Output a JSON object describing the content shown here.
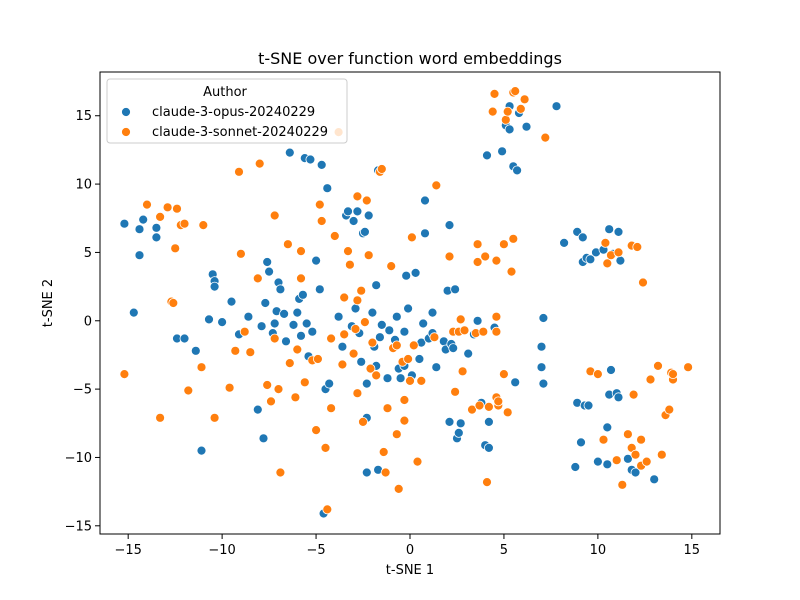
{
  "chart_data": {
    "type": "scatter",
    "title": "t-SNE over function word embeddings",
    "xlabel": "t-SNE 1",
    "ylabel": "t-SNE 2",
    "xlim": [
      -16.5,
      16.5
    ],
    "ylim": [
      -15.6,
      18.2
    ],
    "xticks": [
      -15,
      -10,
      -5,
      0,
      5,
      10,
      15
    ],
    "yticks": [
      -15,
      -10,
      -5,
      0,
      5,
      10,
      15
    ],
    "grid": false,
    "legend": {
      "title": "Author",
      "placement": "top-left"
    },
    "series": [
      {
        "name": "claude-3-opus-20240229",
        "color": "#1f77b4",
        "points": [
          [
            -15.2,
            7.1
          ],
          [
            -14.7,
            0.6
          ],
          [
            -14.4,
            4.8
          ],
          [
            -14.4,
            6.7
          ],
          [
            -14.2,
            7.4
          ],
          [
            -13.5,
            6.1
          ],
          [
            -13.5,
            6.8
          ],
          [
            -12.4,
            -1.3
          ],
          [
            -12.0,
            -1.3
          ],
          [
            -11.4,
            -2.2
          ],
          [
            -11.1,
            -9.5
          ],
          [
            -10.7,
            0.1
          ],
          [
            -10.5,
            3.4
          ],
          [
            -10.4,
            2.9
          ],
          [
            -10.4,
            2.5
          ],
          [
            -10.0,
            -0.1
          ],
          [
            -9.5,
            1.4
          ],
          [
            -9.1,
            -1.0
          ],
          [
            -8.6,
            0.3
          ],
          [
            -8.1,
            -6.5
          ],
          [
            -7.9,
            -0.4
          ],
          [
            -7.8,
            -8.6
          ],
          [
            -7.7,
            1.3
          ],
          [
            -7.6,
            4.3
          ],
          [
            -7.5,
            3.6
          ],
          [
            -7.3,
            -0.9
          ],
          [
            -7.2,
            -0.2
          ],
          [
            -7.1,
            0.7
          ],
          [
            -7.0,
            2.8
          ],
          [
            -6.9,
            2.3
          ],
          [
            -6.7,
            0.5
          ],
          [
            -6.6,
            -1.5
          ],
          [
            -6.4,
            12.3
          ],
          [
            -6.2,
            -0.3
          ],
          [
            -6.0,
            0.6
          ],
          [
            -5.9,
            1.6
          ],
          [
            -5.8,
            -1.1
          ],
          [
            -5.7,
            1.9
          ],
          [
            -5.6,
            11.9
          ],
          [
            -5.5,
            -0.2
          ],
          [
            -5.4,
            -2.6
          ],
          [
            -5.3,
            11.8
          ],
          [
            -5.2,
            -0.8
          ],
          [
            -5.0,
            4.4
          ],
          [
            -4.8,
            2.3
          ],
          [
            -4.7,
            11.4
          ],
          [
            -4.6,
            -14.1
          ],
          [
            -4.5,
            -5.0
          ],
          [
            -4.4,
            9.7
          ],
          [
            -4.3,
            -4.6
          ],
          [
            -3.8,
            0.3
          ],
          [
            -3.6,
            -1.9
          ],
          [
            -3.4,
            7.7
          ],
          [
            -3.3,
            8.0
          ],
          [
            -3.1,
            -0.4
          ],
          [
            -3.0,
            7.3
          ],
          [
            -2.9,
            0.9
          ],
          [
            -2.8,
            8.0
          ],
          [
            -2.7,
            -0.9
          ],
          [
            -2.6,
            -3.0
          ],
          [
            -2.5,
            6.4
          ],
          [
            -2.4,
            6.5
          ],
          [
            -2.3,
            -11.1
          ],
          [
            -2.3,
            -7.1
          ],
          [
            -2.3,
            -4.6
          ],
          [
            -2.2,
            7.7
          ],
          [
            -2.0,
            0.6
          ],
          [
            -1.9,
            -1.9
          ],
          [
            -1.8,
            -3.3
          ],
          [
            -1.8,
            2.6
          ],
          [
            -1.7,
            11.0
          ],
          [
            -1.7,
            -10.9
          ],
          [
            -1.6,
            -1.2
          ],
          [
            -1.5,
            -0.3
          ],
          [
            -1.2,
            -4.2
          ],
          [
            -1.1,
            -0.7
          ],
          [
            -0.8,
            -1.4
          ],
          [
            -0.7,
            0.3
          ],
          [
            -0.6,
            -3.5
          ],
          [
            -0.5,
            -4.2
          ],
          [
            -0.3,
            -3.3
          ],
          [
            -0.3,
            -0.8
          ],
          [
            -0.2,
            3.3
          ],
          [
            -0.1,
            0.9
          ],
          [
            0.1,
            -4.0
          ],
          [
            0.3,
            3.5
          ],
          [
            0.5,
            -2.8
          ],
          [
            0.6,
            -1.6
          ],
          [
            0.7,
            -0.2
          ],
          [
            0.8,
            8.8
          ],
          [
            0.8,
            6.4
          ],
          [
            1.0,
            -1.3
          ],
          [
            1.2,
            -0.9
          ],
          [
            1.2,
            0.6
          ],
          [
            1.4,
            -3.4
          ],
          [
            1.8,
            -1.5
          ],
          [
            1.9,
            -2.1
          ],
          [
            2.0,
            2.2
          ],
          [
            2.1,
            7.0
          ],
          [
            2.1,
            -7.4
          ],
          [
            2.2,
            -1.7
          ],
          [
            2.3,
            -2.0
          ],
          [
            2.4,
            2.3
          ],
          [
            2.5,
            -8.6
          ],
          [
            2.6,
            -8.2
          ],
          [
            2.7,
            -7.5
          ],
          [
            3.1,
            -2.4
          ],
          [
            3.4,
            -1.0
          ],
          [
            3.6,
            0.0
          ],
          [
            3.8,
            -6.0
          ],
          [
            4.0,
            -9.1
          ],
          [
            4.2,
            -7.4
          ],
          [
            4.2,
            -9.3
          ],
          [
            4.5,
            -0.5
          ],
          [
            4.1,
            12.1
          ],
          [
            4.9,
            12.4
          ],
          [
            5.1,
            14.3
          ],
          [
            5.3,
            14.0
          ],
          [
            5.3,
            15.7
          ],
          [
            5.5,
            11.3
          ],
          [
            5.6,
            -4.5
          ],
          [
            5.7,
            11.0
          ],
          [
            5.8,
            15.2
          ],
          [
            6.2,
            14.2
          ],
          [
            7.0,
            -1.9
          ],
          [
            7.0,
            -3.4
          ],
          [
            7.1,
            -4.6
          ],
          [
            7.1,
            0.2
          ],
          [
            7.8,
            15.7
          ],
          [
            8.2,
            5.7
          ],
          [
            8.8,
            -10.7
          ],
          [
            8.9,
            -6.0
          ],
          [
            8.9,
            6.5
          ],
          [
            9.1,
            -8.9
          ],
          [
            9.2,
            6.1
          ],
          [
            9.2,
            4.3
          ],
          [
            9.3,
            -6.2
          ],
          [
            9.4,
            4.6
          ],
          [
            9.5,
            -6.2
          ],
          [
            9.6,
            4.5
          ],
          [
            9.9,
            5.0
          ],
          [
            10.0,
            -10.3
          ],
          [
            10.3,
            5.2
          ],
          [
            10.3,
            -8.7
          ],
          [
            10.5,
            -7.8
          ],
          [
            10.5,
            -10.5
          ],
          [
            10.6,
            6.7
          ],
          [
            10.6,
            -5.4
          ],
          [
            10.7,
            -3.6
          ],
          [
            10.8,
            4.9
          ],
          [
            11.0,
            -5.3
          ],
          [
            11.1,
            -5.6
          ],
          [
            11.1,
            6.5
          ],
          [
            11.2,
            4.4
          ],
          [
            11.6,
            -10.1
          ],
          [
            11.8,
            -10.9
          ],
          [
            12.0,
            -11.1
          ],
          [
            13.0,
            -11.6
          ]
        ]
      },
      {
        "name": "claude-3-sonnet-20240229",
        "color": "#ff7f0e",
        "points": [
          [
            -15.2,
            -3.9
          ],
          [
            -14.0,
            8.5
          ],
          [
            -13.3,
            7.6
          ],
          [
            -13.3,
            -7.1
          ],
          [
            -12.9,
            8.3
          ],
          [
            -12.7,
            1.4
          ],
          [
            -12.6,
            1.3
          ],
          [
            -12.5,
            5.3
          ],
          [
            -12.4,
            8.2
          ],
          [
            -12.2,
            7.0
          ],
          [
            -12.0,
            7.1
          ],
          [
            -11.8,
            -5.1
          ],
          [
            -11.1,
            -3.4
          ],
          [
            -11.0,
            7.0
          ],
          [
            -10.4,
            -7.1
          ],
          [
            -9.6,
            -4.9
          ],
          [
            -9.3,
            -2.2
          ],
          [
            -9.1,
            10.9
          ],
          [
            -9.0,
            4.9
          ],
          [
            -8.8,
            -0.8
          ],
          [
            -8.5,
            -2.3
          ],
          [
            -8.1,
            3.1
          ],
          [
            -8.0,
            11.5
          ],
          [
            -7.6,
            -4.7
          ],
          [
            -7.4,
            -5.9
          ],
          [
            -7.2,
            -1.3
          ],
          [
            -7.2,
            7.7
          ],
          [
            -7.0,
            -5.0
          ],
          [
            -6.9,
            -11.1
          ],
          [
            -6.5,
            5.6
          ],
          [
            -6.4,
            -3.1
          ],
          [
            -6.1,
            -5.6
          ],
          [
            -6.0,
            -2.1
          ],
          [
            -5.8,
            5.1
          ],
          [
            -5.8,
            3.1
          ],
          [
            -5.6,
            -4.5
          ],
          [
            -5.2,
            -2.9
          ],
          [
            -5.0,
            -8.0
          ],
          [
            -4.9,
            -2.8
          ],
          [
            -4.8,
            8.5
          ],
          [
            -4.7,
            7.3
          ],
          [
            -4.5,
            -9.3
          ],
          [
            -4.4,
            -13.8
          ],
          [
            -4.2,
            -6.4
          ],
          [
            -4.2,
            -1.3
          ],
          [
            -4.0,
            6.2
          ],
          [
            -3.8,
            13.8
          ],
          [
            -3.6,
            -3.2
          ],
          [
            -3.5,
            1.7
          ],
          [
            -3.5,
            -1.0
          ],
          [
            -3.3,
            5.1
          ],
          [
            -3.2,
            4.1
          ],
          [
            -3.0,
            -2.4
          ],
          [
            -2.9,
            -0.6
          ],
          [
            -2.8,
            1.5
          ],
          [
            -2.8,
            -5.3
          ],
          [
            -2.8,
            9.1
          ],
          [
            -2.6,
            2.2
          ],
          [
            -2.5,
            -7.4
          ],
          [
            -2.4,
            -0.1
          ],
          [
            -2.3,
            8.8
          ],
          [
            -2.2,
            4.8
          ],
          [
            -2.1,
            -3.5
          ],
          [
            -2.0,
            -1.6
          ],
          [
            -1.8,
            -4.0
          ],
          [
            -1.6,
            10.9
          ],
          [
            -1.5,
            11.1
          ],
          [
            -1.4,
            -9.6
          ],
          [
            -1.3,
            -11.1
          ],
          [
            -1.2,
            -6.4
          ],
          [
            -1.0,
            4.0
          ],
          [
            -0.9,
            -2.0
          ],
          [
            -0.7,
            -1.8
          ],
          [
            -0.7,
            -8.3
          ],
          [
            -0.6,
            -12.3
          ],
          [
            -0.4,
            -3.0
          ],
          [
            -0.3,
            -5.8
          ],
          [
            -0.3,
            -7.3
          ],
          [
            -0.1,
            -2.8
          ],
          [
            0.0,
            -4.4
          ],
          [
            0.1,
            6.1
          ],
          [
            0.2,
            -1.8
          ],
          [
            0.4,
            -10.3
          ],
          [
            0.6,
            -4.4
          ],
          [
            1.3,
            -1.2
          ],
          [
            1.4,
            9.9
          ],
          [
            2.1,
            4.7
          ],
          [
            2.3,
            -0.8
          ],
          [
            2.4,
            -5.2
          ],
          [
            2.6,
            -0.8
          ],
          [
            2.7,
            0.1
          ],
          [
            2.8,
            -3.7
          ],
          [
            2.9,
            -0.7
          ],
          [
            3.3,
            -6.5
          ],
          [
            3.5,
            -0.9
          ],
          [
            3.6,
            4.3
          ],
          [
            3.6,
            5.6
          ],
          [
            3.7,
            -6.2
          ],
          [
            3.9,
            -0.8
          ],
          [
            4.0,
            4.7
          ],
          [
            4.1,
            -11.8
          ],
          [
            4.2,
            -6.3
          ],
          [
            4.4,
            15.3
          ],
          [
            4.5,
            16.6
          ],
          [
            4.6,
            4.4
          ],
          [
            4.6,
            0.3
          ],
          [
            4.6,
            -0.8
          ],
          [
            4.6,
            -5.6
          ],
          [
            4.7,
            -6.2
          ],
          [
            4.7,
            -5.9
          ],
          [
            5.0,
            5.6
          ],
          [
            5.0,
            -3.9
          ],
          [
            5.1,
            14.7
          ],
          [
            5.2,
            15.3
          ],
          [
            5.2,
            -6.7
          ],
          [
            5.4,
            3.6
          ],
          [
            5.5,
            6.0
          ],
          [
            5.5,
            16.7
          ],
          [
            5.6,
            16.8
          ],
          [
            5.9,
            15.5
          ],
          [
            6.1,
            16.2
          ],
          [
            7.2,
            13.4
          ],
          [
            9.6,
            -3.7
          ],
          [
            10.0,
            -3.9
          ],
          [
            10.3,
            -8.7
          ],
          [
            10.4,
            5.7
          ],
          [
            10.5,
            4.2
          ],
          [
            10.7,
            4.8
          ],
          [
            11.0,
            -10.2
          ],
          [
            11.1,
            5.0
          ],
          [
            11.3,
            -12.0
          ],
          [
            11.6,
            -8.3
          ],
          [
            11.8,
            -9.3
          ],
          [
            11.8,
            5.5
          ],
          [
            11.9,
            -5.4
          ],
          [
            12.0,
            -9.8
          ],
          [
            12.1,
            5.4
          ],
          [
            12.3,
            -10.6
          ],
          [
            12.3,
            -8.7
          ],
          [
            12.4,
            2.8
          ],
          [
            12.6,
            -10.3
          ],
          [
            12.8,
            -4.3
          ],
          [
            13.2,
            -3.3
          ],
          [
            13.4,
            -9.8
          ],
          [
            13.6,
            -6.9
          ],
          [
            13.8,
            -6.5
          ],
          [
            13.9,
            -3.8
          ],
          [
            14.0,
            -4.3
          ],
          [
            14.0,
            -3.9
          ],
          [
            14.8,
            -3.4
          ]
        ]
      }
    ]
  }
}
